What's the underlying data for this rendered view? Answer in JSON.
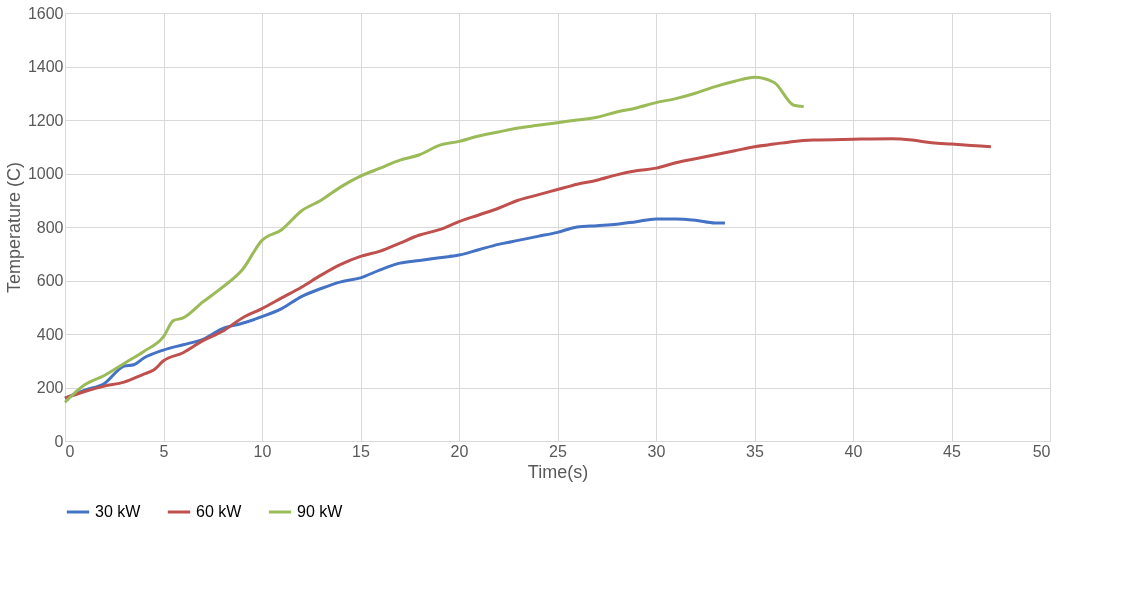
{
  "chart_data": {
    "type": "line",
    "xlabel": "Time(s)",
    "ylabel": "Temperature (C)",
    "xlim": [
      0,
      50
    ],
    "xticks": [
      0,
      5,
      10,
      15,
      20,
      25,
      30,
      35,
      40,
      45,
      50
    ],
    "ylim": [
      0,
      1600
    ],
    "yticks": [
      0,
      200,
      400,
      600,
      800,
      1000,
      1200,
      1400,
      1600
    ],
    "grid": true,
    "legend": "bottom",
    "marker": "none",
    "line_style": "solid",
    "series": [
      {
        "name": "30 kW",
        "color": "#4472c4",
        "x": [
          0,
          1,
          2,
          3,
          3.5,
          4,
          5,
          6,
          7,
          8,
          9,
          10,
          11,
          12,
          13,
          14,
          15,
          16,
          17,
          18,
          19,
          20,
          21,
          22,
          23,
          24,
          25,
          26,
          27,
          28,
          29,
          30,
          31,
          32,
          33,
          33.5
        ],
        "values": [
          160,
          190,
          215,
          280,
          285,
          310,
          340,
          360,
          380,
          420,
          440,
          465,
          495,
          540,
          570,
          595,
          610,
          640,
          665,
          675,
          685,
          695,
          715,
          735,
          750,
          765,
          780,
          800,
          805,
          810,
          820,
          830,
          830,
          825,
          815,
          815
        ]
      },
      {
        "name": "60 kW",
        "color": "#c0504d",
        "x": [
          0,
          1,
          2,
          3,
          4,
          4.5,
          5,
          6,
          7,
          8,
          9,
          10,
          11,
          12,
          13,
          14,
          15,
          16,
          17,
          18,
          19,
          20,
          21,
          22,
          23,
          24,
          25,
          26,
          27,
          28,
          29,
          30,
          31,
          32,
          33,
          34,
          35,
          36,
          37,
          38,
          40,
          42,
          43,
          44,
          45,
          46,
          47
        ],
        "values": [
          160,
          185,
          205,
          220,
          250,
          265,
          300,
          330,
          375,
          410,
          460,
          495,
          535,
          575,
          620,
          660,
          690,
          710,
          740,
          770,
          790,
          820,
          845,
          870,
          900,
          920,
          940,
          960,
          975,
          995,
          1010,
          1020,
          1040,
          1055,
          1070,
          1085,
          1100,
          1110,
          1120,
          1125,
          1128,
          1130,
          1125,
          1115,
          1110,
          1105,
          1100
        ]
      },
      {
        "name": "90 kW",
        "color": "#9bbb59",
        "x": [
          0,
          1,
          2,
          3,
          4,
          5,
          5.5,
          6,
          7,
          8,
          9,
          10,
          11,
          12,
          13,
          14,
          15,
          16,
          17,
          18,
          19,
          20,
          21,
          22,
          23,
          24,
          25,
          26,
          27,
          28,
          29,
          30,
          31,
          32,
          33,
          34,
          35,
          36,
          37,
          37.5
        ],
        "values": [
          145,
          210,
          245,
          290,
          335,
          390,
          450,
          460,
          520,
          575,
          640,
          750,
          790,
          860,
          900,
          950,
          990,
          1020,
          1050,
          1070,
          1105,
          1120,
          1140,
          1155,
          1170,
          1180,
          1190,
          1200,
          1210,
          1230,
          1245,
          1265,
          1280,
          1300,
          1325,
          1345,
          1360,
          1340,
          1255,
          1250
        ]
      }
    ]
  }
}
